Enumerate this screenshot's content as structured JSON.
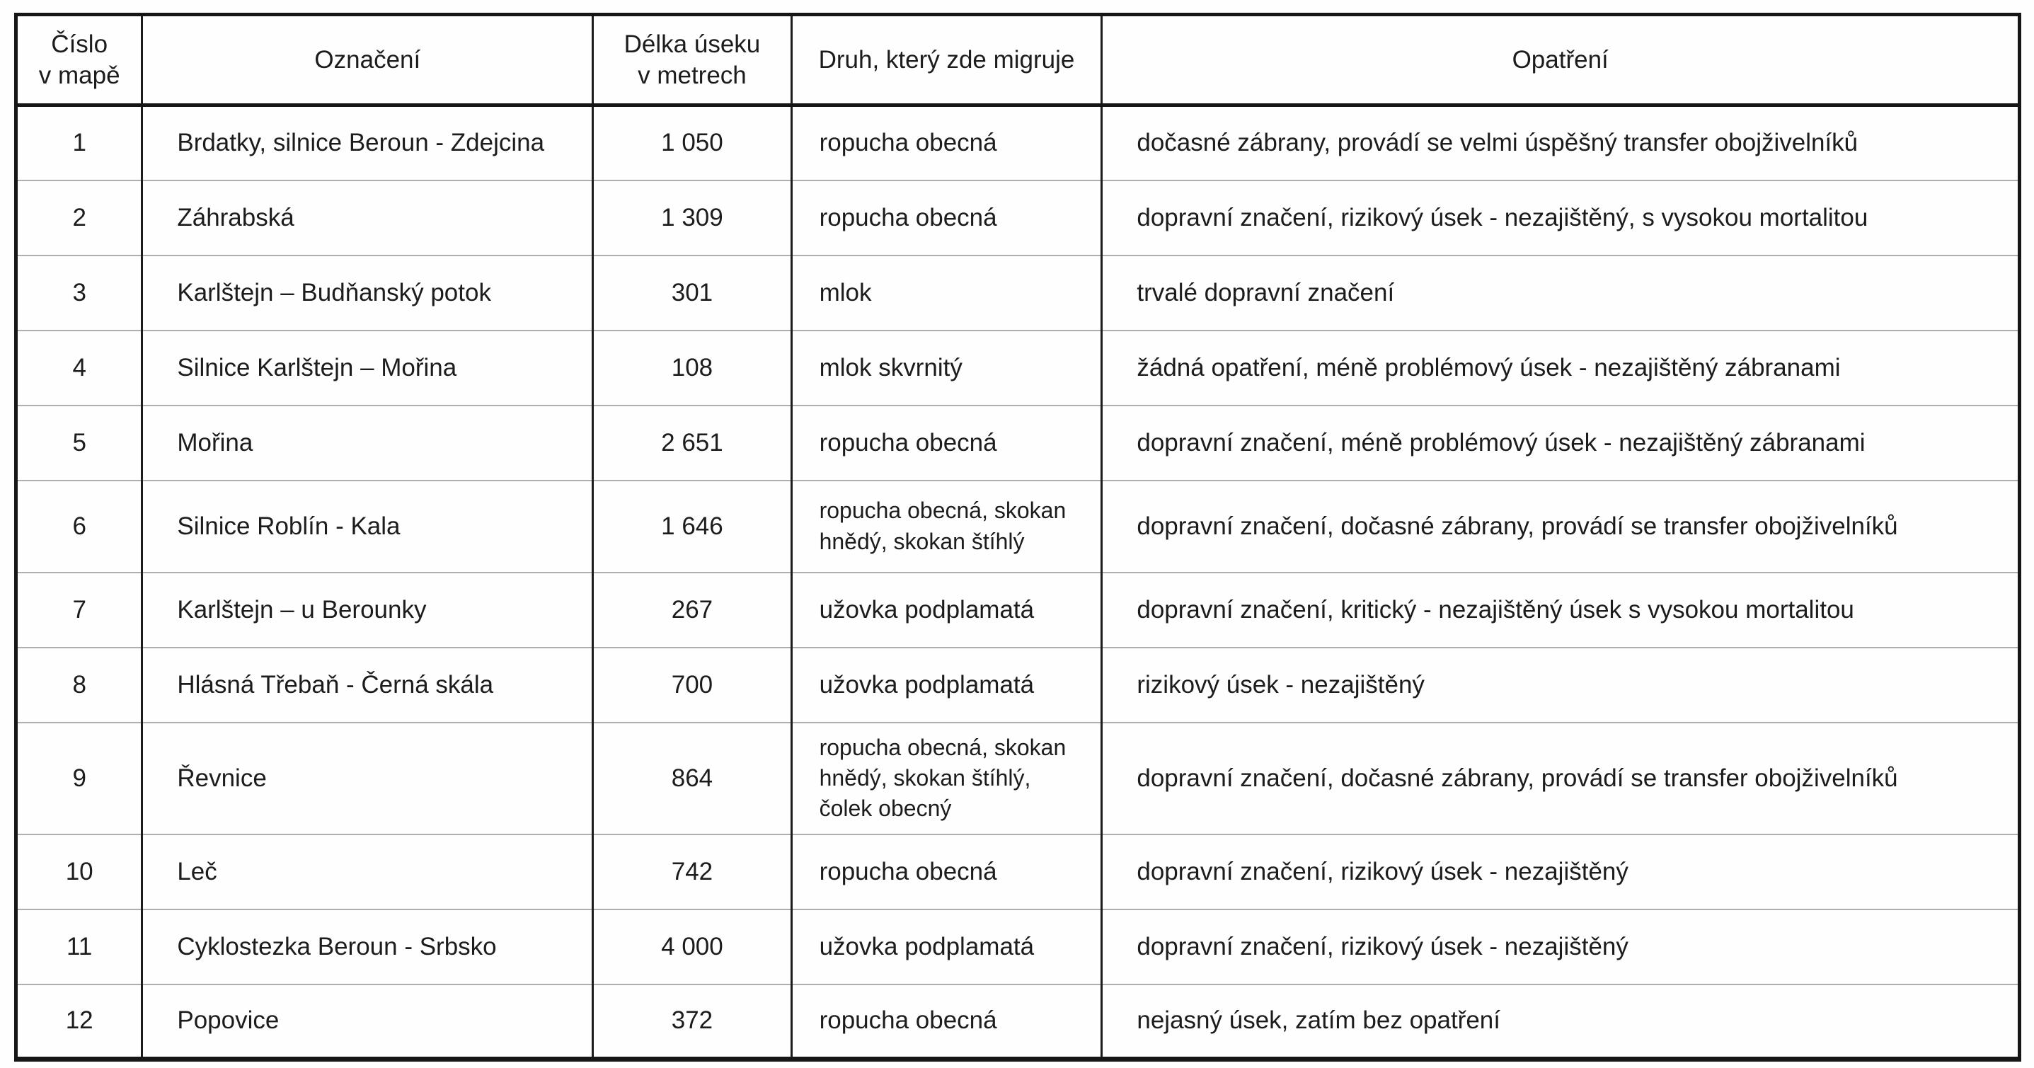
{
  "document": {
    "type": "scanned-table",
    "language": "cs",
    "paper_color": "#fefefe",
    "line_color": "#161616",
    "separator_color": "#aeaeae"
  },
  "table": {
    "columns": [
      {
        "key": "cislo",
        "label": "Číslo\nv mapě"
      },
      {
        "key": "oznaceni",
        "label": "Označení"
      },
      {
        "key": "delka",
        "label": "Délka úseku\nv metrech"
      },
      {
        "key": "druh",
        "label": "Druh, který zde migruje"
      },
      {
        "key": "opatreni",
        "label": "Opatření"
      }
    ],
    "rows": [
      {
        "cislo": "1",
        "oznaceni": "Brdatky, silnice Beroun - Zdejcina",
        "delka": "1 050",
        "druh": "ropucha obecná",
        "opatreni": "dočasné zábrany, provádí se velmi úspěšný transfer obojživelníků"
      },
      {
        "cislo": "2",
        "oznaceni": "Záhrabská",
        "delka": "1 309",
        "druh": "ropucha obecná",
        "opatreni": "dopravní značení, rizikový úsek - nezajištěný, s vysokou mortalitou"
      },
      {
        "cislo": "3",
        "oznaceni": "Karlštejn – Budňanský potok",
        "delka": "301",
        "druh": "mlok",
        "opatreni": "trvalé dopravní značení"
      },
      {
        "cislo": "4",
        "oznaceni": "Silnice Karlštejn – Mořina",
        "delka": "108",
        "druh": "mlok skvrnitý",
        "opatreni": "žádná opatření, méně problémový úsek - nezajištěný zábranami"
      },
      {
        "cislo": "5",
        "oznaceni": "Mořina",
        "delka": "2 651",
        "druh": "ropucha obecná",
        "opatreni": "dopravní značení, méně problémový úsek - nezajištěný zábranami"
      },
      {
        "cislo": "6",
        "oznaceni": "Silnice Roblín - Kala",
        "delka": "1 646",
        "druh": "ropucha obecná, skokan hnědý, skokan štíhlý",
        "opatreni": "dopravní značení, dočasné zábrany, provádí se transfer obojživelníků"
      },
      {
        "cislo": "7",
        "oznaceni": "Karlštejn – u Berounky",
        "delka": "267",
        "druh": "užovka podplamatá",
        "opatreni": "dopravní značení, kritický - nezajištěný úsek s vysokou mortalitou"
      },
      {
        "cislo": "8",
        "oznaceni": "Hlásná Třebaň - Černá skála",
        "delka": "700",
        "druh": "užovka podplamatá",
        "opatreni": "rizikový úsek - nezajištěný"
      },
      {
        "cislo": "9",
        "oznaceni": "Řevnice",
        "delka": "864",
        "druh": "ropucha obecná, skokan hnědý, skokan štíhlý, čolek obecný",
        "opatreni": "dopravní značení, dočasné zábrany, provádí se transfer obojživelníků"
      },
      {
        "cislo": "10",
        "oznaceni": "Leč",
        "delka": "742",
        "druh": "ropucha obecná",
        "opatreni": "dopravní značení, rizikový úsek - nezajištěný"
      },
      {
        "cislo": "11",
        "oznaceni": "Cyklostezka Beroun - Srbsko",
        "delka": "4 000",
        "druh": "užovka podplamatá",
        "opatreni": "dopravní značení, rizikový úsek - nezajištěný"
      },
      {
        "cislo": "12",
        "oznaceni": "Popovice",
        "delka": "372",
        "druh": "ropucha obecná",
        "opatreni": "nejasný úsek, zatím bez opatření"
      }
    ]
  }
}
